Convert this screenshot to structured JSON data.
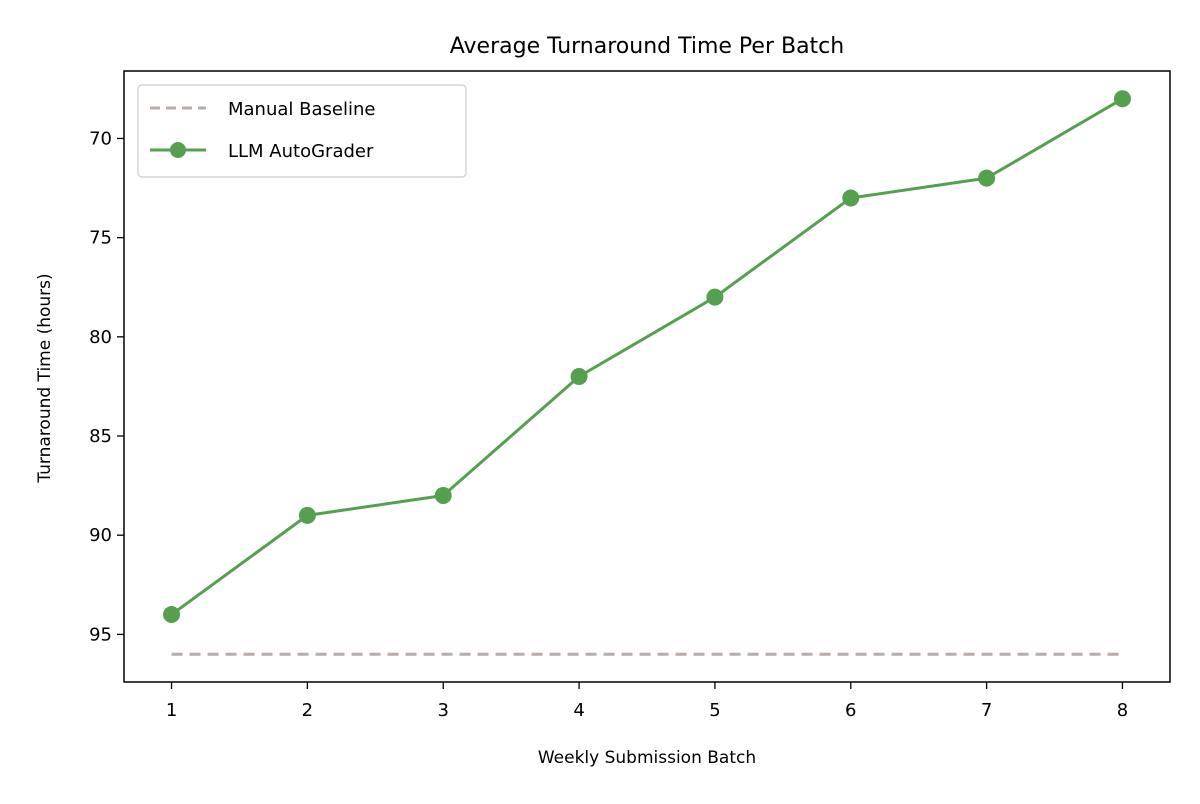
{
  "chart_data": {
    "type": "line",
    "title": "Average Turnaround Time Per Batch",
    "xlabel": "Weekly Submission Batch",
    "ylabel": "Turnaround Time (hours)",
    "x": [
      1,
      2,
      3,
      4,
      5,
      6,
      7,
      8
    ],
    "xlim": [
      0.65,
      8.35
    ],
    "ylim": [
      97.4,
      66.6
    ],
    "y_inverted": true,
    "xticks": [
      1,
      2,
      3,
      4,
      5,
      6,
      7,
      8
    ],
    "yticks": [
      70,
      75,
      80,
      85,
      90,
      95
    ],
    "grid": false,
    "legend_position": "top-left",
    "series": [
      {
        "name": "Manual Baseline",
        "values": [
          96,
          96,
          96,
          96,
          96,
          96,
          96,
          96
        ],
        "color": "#b8aca7",
        "style": "dashed",
        "marker": "none"
      },
      {
        "name": "LLM AutoGrader",
        "values": [
          94,
          89,
          88,
          82,
          78,
          73,
          72,
          68
        ],
        "color": "#55a04f",
        "style": "solid",
        "marker": "circle"
      }
    ]
  }
}
